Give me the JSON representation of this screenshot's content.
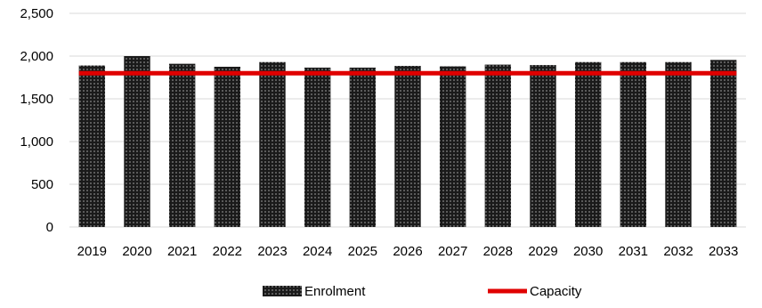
{
  "chart_data": {
    "type": "bar",
    "categories": [
      "2019",
      "2020",
      "2021",
      "2022",
      "2023",
      "2024",
      "2025",
      "2026",
      "2027",
      "2028",
      "2029",
      "2030",
      "2031",
      "2032",
      "2033"
    ],
    "series": [
      {
        "name": "Enrolment",
        "type": "bar",
        "values": [
          1890,
          2000,
          1910,
          1875,
          1930,
          1865,
          1865,
          1885,
          1880,
          1900,
          1895,
          1930,
          1930,
          1930,
          1955
        ],
        "color": "#1a1a1a",
        "pattern": "dotted"
      },
      {
        "name": "Capacity",
        "type": "line",
        "values": [
          1800,
          1800,
          1800,
          1800,
          1800,
          1800,
          1800,
          1800,
          1800,
          1800,
          1800,
          1800,
          1800,
          1800,
          1800
        ],
        "color": "#e00000"
      }
    ],
    "ylim": [
      0,
      2500
    ],
    "yticks": [
      0,
      500,
      1000,
      1500,
      2000,
      2500
    ],
    "ytick_labels": [
      "0",
      "500",
      "1,000",
      "1,500",
      "2,000",
      "2,500"
    ],
    "grid": true,
    "legend_position": "bottom"
  },
  "colors": {
    "grid": "#d9d9d9",
    "bar": "#1a1a1a",
    "capacity": "#e00000"
  }
}
